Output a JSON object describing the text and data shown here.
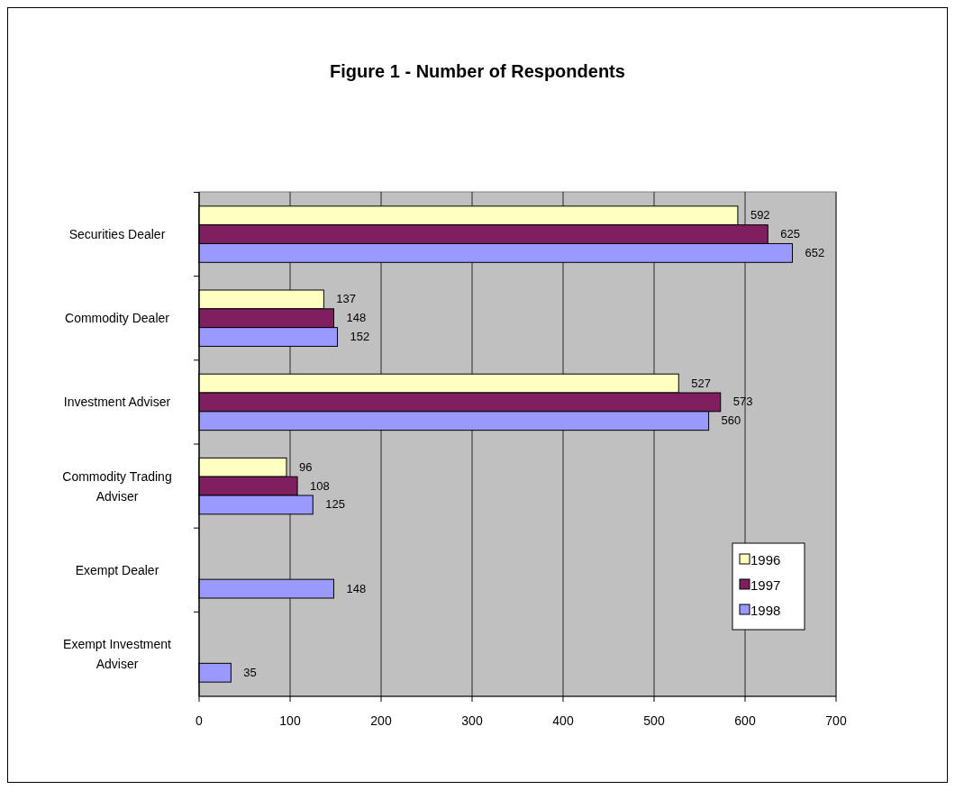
{
  "chart_data": {
    "type": "bar",
    "orientation": "horizontal",
    "title": "Figure 1 - Number of Respondents",
    "categories": [
      "Securities Dealer",
      "Commodity Dealer",
      "Investment Adviser",
      "Commodity Trading Adviser",
      "Exempt Dealer",
      "Exempt Investment Adviser"
    ],
    "series": [
      {
        "name": "1996",
        "color": "#ffffc0",
        "values": [
          592,
          137,
          527,
          96,
          null,
          null
        ]
      },
      {
        "name": "1997",
        "color": "#7f1f5f",
        "values": [
          625,
          148,
          573,
          108,
          null,
          null
        ]
      },
      {
        "name": "1998",
        "color": "#9999ff",
        "values": [
          652,
          152,
          560,
          125,
          148,
          35
        ]
      }
    ],
    "xlim": [
      0,
      700
    ],
    "xticks": [
      0,
      100,
      200,
      300,
      400,
      500,
      600,
      700
    ],
    "grid": "x",
    "legend": "right",
    "data_labels": true
  }
}
